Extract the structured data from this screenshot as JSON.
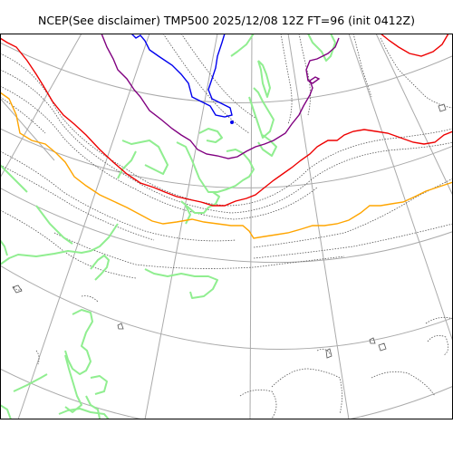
{
  "title": "NCEP(See disclaimer) TMP500 2025/12/08 12Z FT=96 (init 0412Z)",
  "map": {
    "variable": "TMP500",
    "valid_time": "2025/12/08 12Z",
    "forecast_hour": "FT=96",
    "init": "init 0412Z",
    "colors": {
      "graticule": "#aaaaaa",
      "coastline": "#90ee90",
      "isotherm_thin": "#555555",
      "isotherm_blue": "#0000ee",
      "isotherm_purple": "#800080",
      "isotherm_red": "#ee0000",
      "isotherm_orange": "#ffa500"
    }
  }
}
